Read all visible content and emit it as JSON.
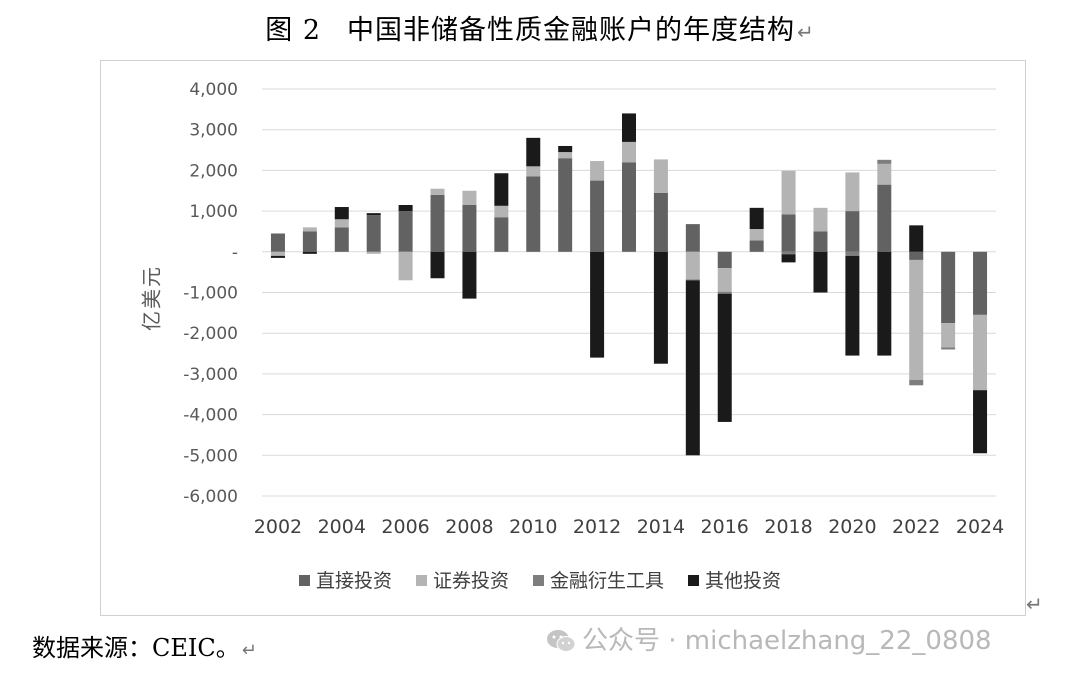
{
  "title": {
    "figure": "图 2",
    "text": "中国非储备性质金融账户的年度结构",
    "return_mark": "↵"
  },
  "source": {
    "text": "数据来源：CEIC。",
    "return_mark": "↵"
  },
  "watermark": "公众号 · michaelzhang_22_0808",
  "colors": {
    "直接投资": "#626262",
    "证券投资": "#b4b4b4",
    "金融衍生工具": "#7e7e7e",
    "其他投资": "#1a1a1a"
  },
  "chart_data": {
    "type": "bar",
    "stacked": true,
    "ylabel": "亿美元",
    "ylim": [
      -6000,
      4000
    ],
    "yticks": [
      4000,
      3000,
      2000,
      1000,
      0,
      -1000,
      -2000,
      -3000,
      -4000,
      -5000,
      -6000
    ],
    "ytick_labels": [
      "4,000",
      "3,000",
      "2,000",
      "1,000",
      "-",
      "-1,000",
      "-2,000",
      "-3,000",
      "-4,000",
      "-5,000",
      "-6,000"
    ],
    "x": [
      2002,
      2003,
      2004,
      2005,
      2006,
      2007,
      2008,
      2009,
      2010,
      2011,
      2012,
      2013,
      2014,
      2015,
      2016,
      2017,
      2018,
      2019,
      2020,
      2021,
      2022,
      2023,
      2024
    ],
    "xtick_labels": [
      "2002",
      "2004",
      "2006",
      "2008",
      "2010",
      "2012",
      "2014",
      "2016",
      "2018",
      "2020",
      "2022",
      "2024"
    ],
    "grid": true,
    "legend_position": "bottom",
    "series": [
      {
        "name": "直接投资",
        "values": [
          450,
          500,
          600,
          900,
          1000,
          1400,
          1150,
          850,
          1850,
          2300,
          1750,
          2200,
          1450,
          680,
          -400,
          280,
          920,
          500,
          1000,
          1650,
          -200,
          -1750,
          -1550
        ]
      },
      {
        "name": "证券投资",
        "values": [
          -100,
          100,
          200,
          -50,
          -700,
          150,
          350,
          280,
          250,
          150,
          480,
          500,
          820,
          -680,
          -580,
          280,
          1070,
          580,
          950,
          510,
          -2950,
          -600,
          -1850
        ]
      },
      {
        "name": "金融衍生工具",
        "values": [
          0,
          0,
          0,
          0,
          0,
          0,
          0,
          0,
          0,
          0,
          0,
          0,
          0,
          -20,
          -50,
          0,
          -60,
          0,
          -100,
          100,
          -130,
          -50,
          0
        ]
      },
      {
        "name": "其他投资",
        "values": [
          -50,
          -50,
          300,
          50,
          150,
          -650,
          -1150,
          800,
          700,
          150,
          -2600,
          700,
          -2750,
          -4300,
          -3150,
          520,
          -200,
          -1000,
          -2450,
          -2550,
          650,
          0,
          -1550
        ]
      }
    ]
  }
}
